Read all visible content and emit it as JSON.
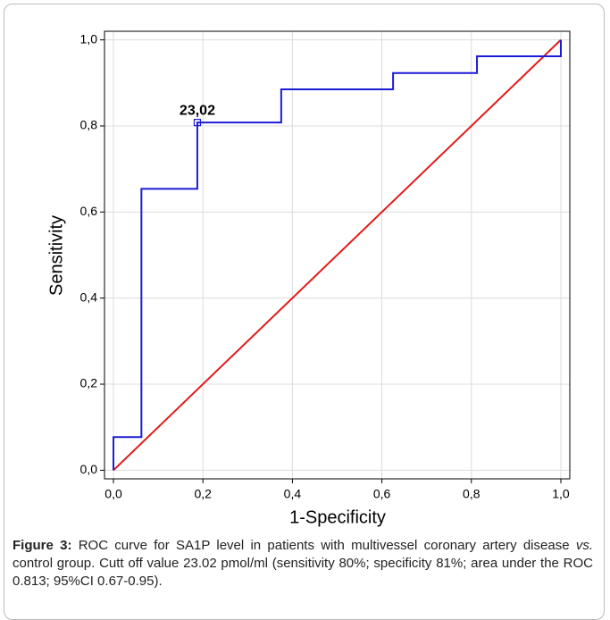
{
  "chart_data": {
    "type": "line",
    "xlabel": "1-Specificity",
    "ylabel": "Sensitivity",
    "caption_label": "Figure 3:",
    "caption": [
      "ROC curve for SA1P level in patients with multivessel coronary artery disease ",
      "vs.",
      " control group. Cutt off value 23.02 pmol/ml (sensitivity 80%; specificity 81%; area under the ROC 0.813; 95%CI 0.67-0.95)."
    ],
    "xlim": [
      -0.02,
      1.02
    ],
    "ylim": [
      -0.02,
      1.02
    ],
    "xticks": [
      {
        "value": 0,
        "label": "0,0"
      },
      {
        "value": 0.2,
        "label": "0,2"
      },
      {
        "value": 0.4,
        "label": "0,4"
      },
      {
        "value": 0.6,
        "label": "0,6"
      },
      {
        "value": 0.8,
        "label": "0,8"
      },
      {
        "value": 1,
        "label": "1,0"
      }
    ],
    "yticks": [
      {
        "value": 0,
        "label": "0,0"
      },
      {
        "value": 0.2,
        "label": "0,2"
      },
      {
        "value": 0.4,
        "label": "0,4"
      },
      {
        "value": 0.6,
        "label": "0,6"
      },
      {
        "value": 0.8,
        "label": "0,8"
      },
      {
        "value": 1,
        "label": "1,0"
      }
    ],
    "grid": true,
    "series": [
      {
        "color": "#1c1cd8",
        "x": [
          0,
          0,
          0.0625,
          0.0625,
          0.1875,
          0.1875,
          0.375,
          0.375,
          0.625,
          0.625,
          0.8125,
          0.8125,
          1,
          1
        ],
        "values": [
          0,
          0.077,
          0.077,
          0.654,
          0.654,
          0.808,
          0.808,
          0.885,
          0.885,
          0.923,
          0.923,
          0.962,
          0.962,
          1
        ]
      },
      {
        "color": "#e01c1c",
        "x": [
          0,
          1
        ],
        "values": [
          0,
          1
        ]
      }
    ],
    "annotations": [
      {
        "text": "23,02",
        "x": 0.1875,
        "y": 0.808
      }
    ]
  }
}
